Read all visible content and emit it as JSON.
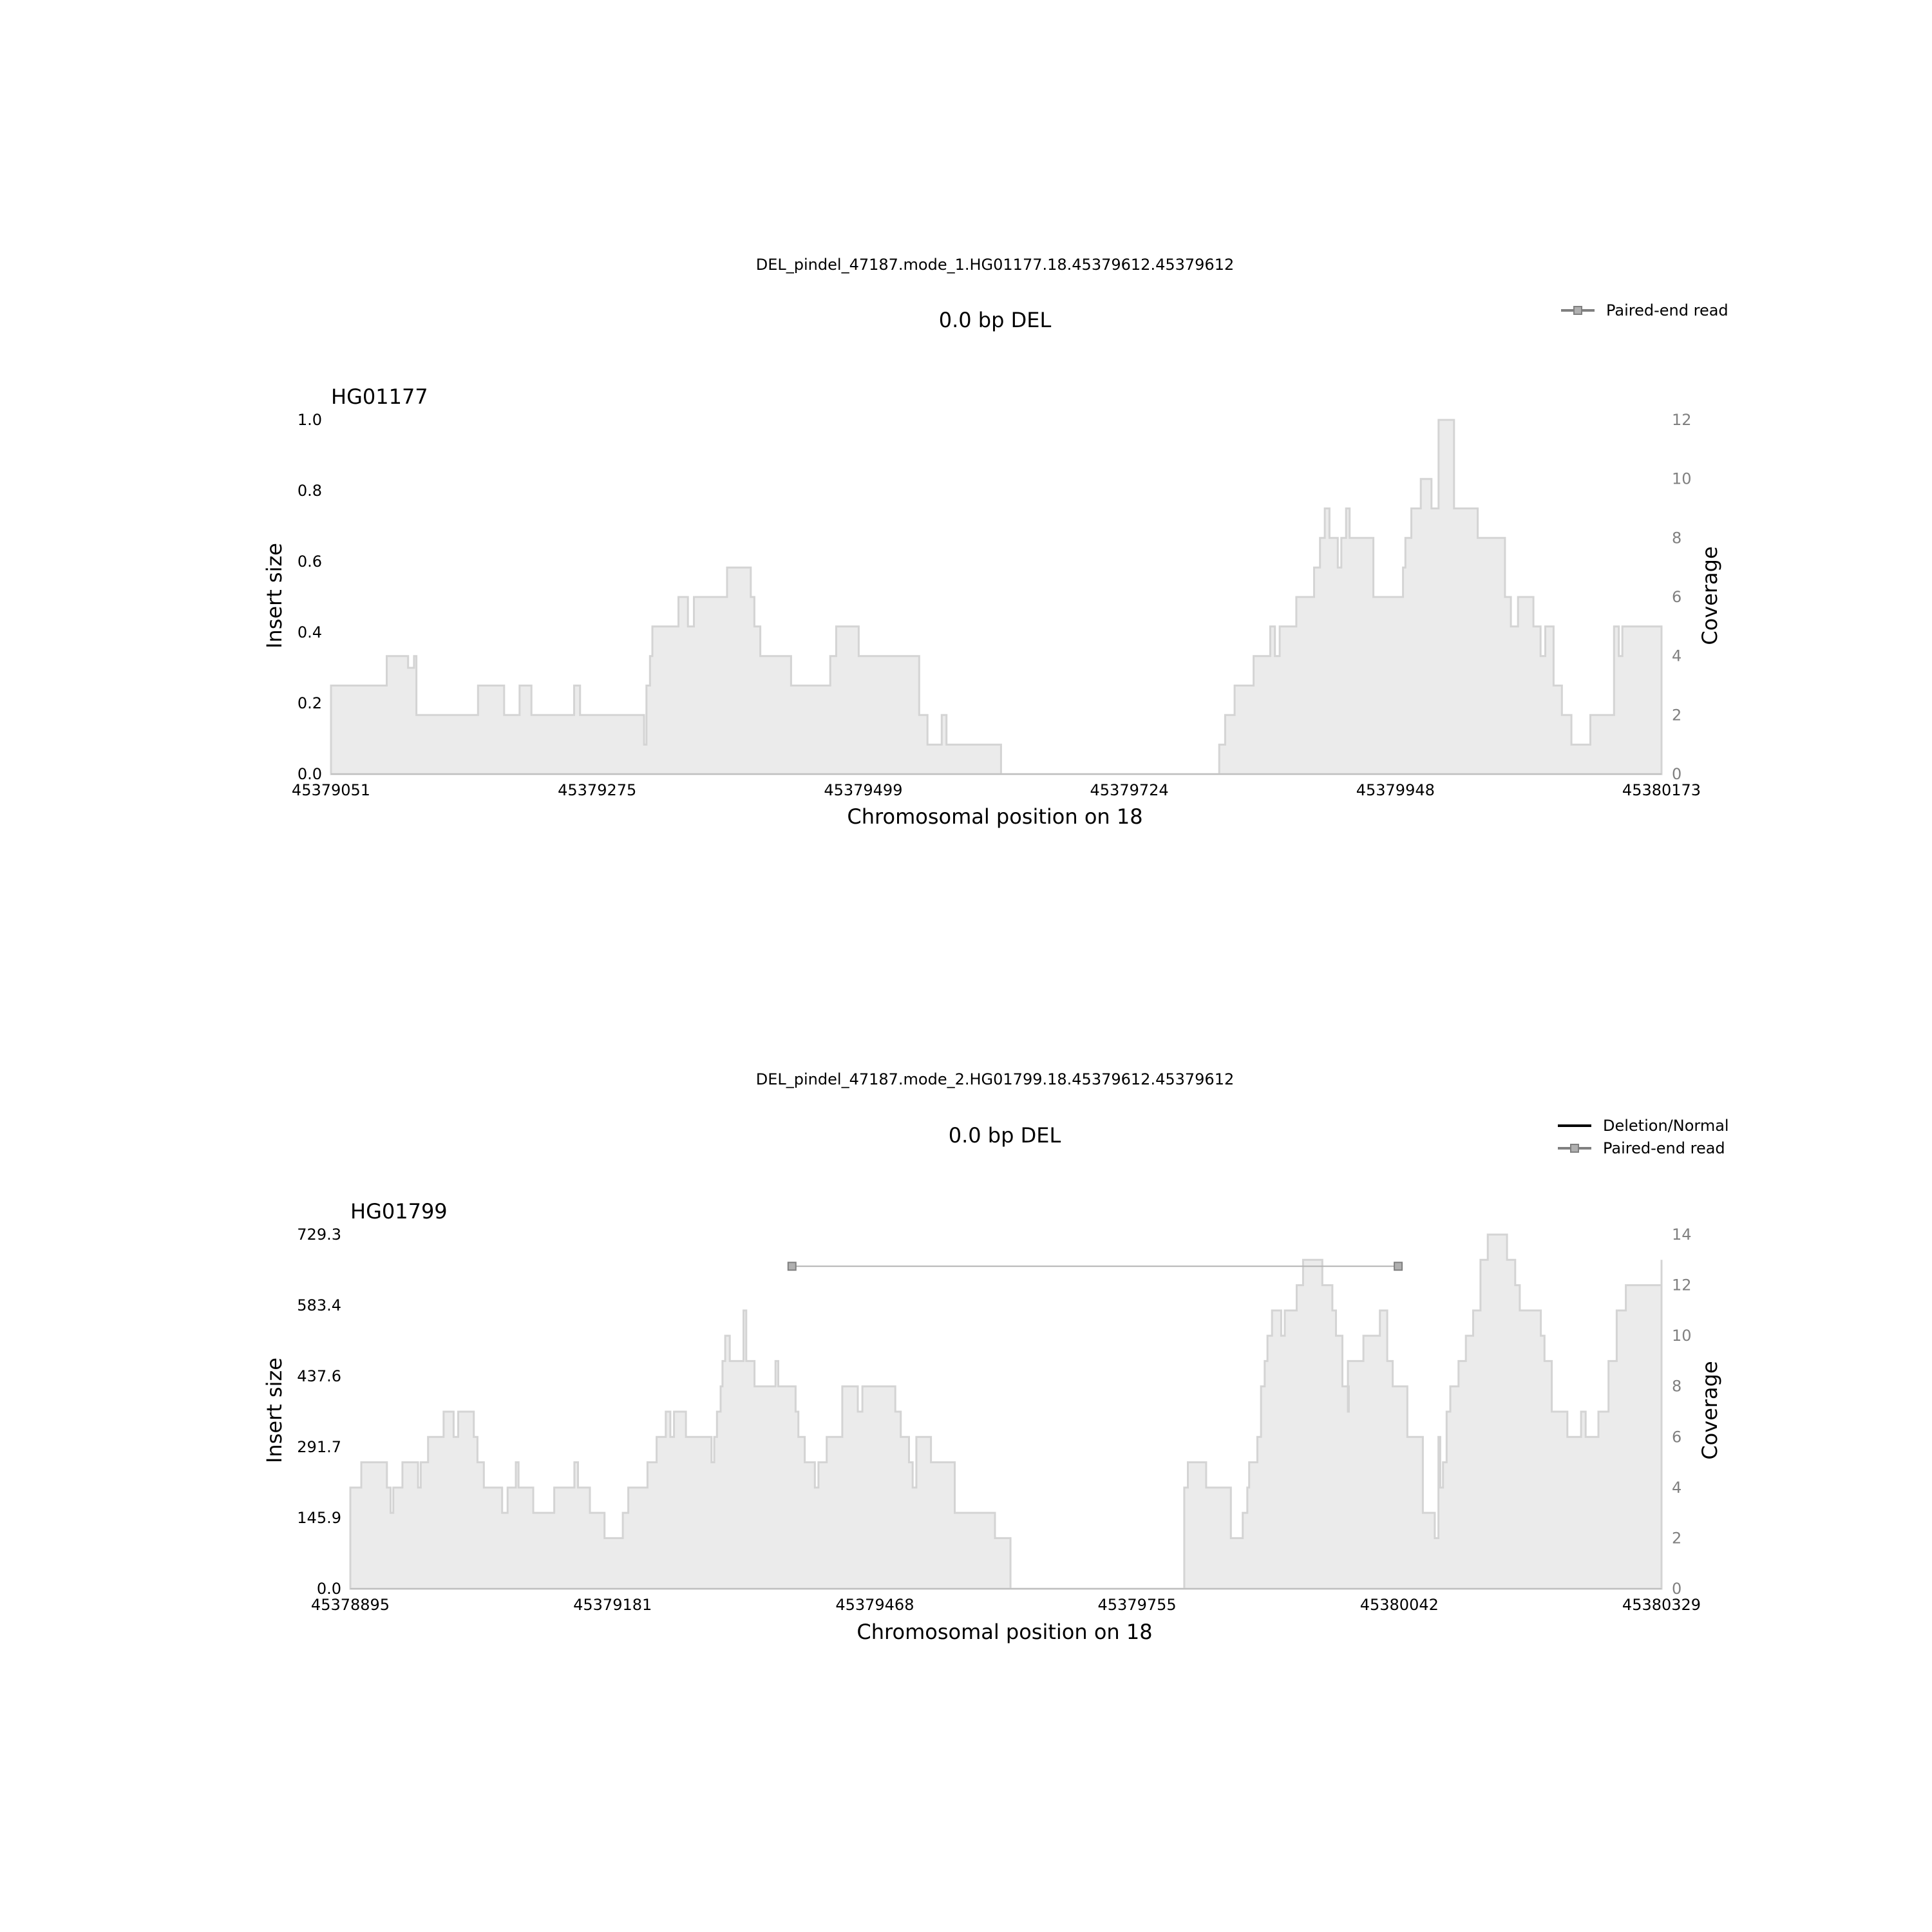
{
  "chart_data": [
    {
      "type": "area",
      "figure_title": "DEL_pindel_47187.mode_1.HG01177.18.45379612.45379612",
      "title": "0.0 bp DEL",
      "sample": "HG01177",
      "xlabel": "Chromosomal position on 18",
      "ylabel": "Insert size",
      "y2label": "Coverage",
      "xlim": [
        45379051,
        45380173
      ],
      "ylim": [
        0.0,
        1.0
      ],
      "y2lim": [
        0,
        12
      ],
      "xticks": [
        "45379051",
        "45379275",
        "45379499",
        "45379724",
        "45379948",
        "45380173"
      ],
      "yticks": [
        "0.0",
        "0.2",
        "0.4",
        "0.6",
        "0.8",
        "1.0"
      ],
      "y2ticks": [
        "0",
        "2",
        "4",
        "6",
        "8",
        "10",
        "12"
      ],
      "legend": {
        "placement": "top-right",
        "entries": [
          {
            "label": "Paired-end read",
            "style": "paired"
          }
        ]
      },
      "colors": {
        "coverage_fill": "#ebebeb",
        "coverage_edge": "#d4d4d4",
        "paired_read": "#808080",
        "axis": "#bfbfbf"
      },
      "paired_reads": [],
      "coverage": [
        [
          45379051,
          3
        ],
        [
          45379098,
          4
        ],
        [
          45379116,
          3.6
        ],
        [
          45379121,
          4
        ],
        [
          45379123,
          2
        ],
        [
          45379175,
          3
        ],
        [
          45379197,
          2
        ],
        [
          45379210,
          3
        ],
        [
          45379220,
          2
        ],
        [
          45379256,
          3
        ],
        [
          45379261,
          2
        ],
        [
          45379315,
          1
        ],
        [
          45379317,
          3
        ],
        [
          45379320,
          4
        ],
        [
          45379322,
          5
        ],
        [
          45379344,
          6
        ],
        [
          45379352,
          5
        ],
        [
          45379357,
          6
        ],
        [
          45379385,
          7
        ],
        [
          45379405,
          6
        ],
        [
          45379408,
          5
        ],
        [
          45379413,
          4
        ],
        [
          45379439,
          3
        ],
        [
          45379472,
          4
        ],
        [
          45379477,
          5
        ],
        [
          45379496,
          4
        ],
        [
          45379547,
          2
        ],
        [
          45379554,
          1
        ],
        [
          45379566,
          2
        ],
        [
          45379570,
          1
        ],
        [
          45379616,
          0
        ],
        [
          45379800,
          1
        ],
        [
          45379805,
          2
        ],
        [
          45379813,
          3
        ],
        [
          45379829,
          4
        ],
        [
          45379843,
          5
        ],
        [
          45379847,
          4
        ],
        [
          45379851,
          5
        ],
        [
          45379865,
          6
        ],
        [
          45379880,
          7
        ],
        [
          45379885,
          8
        ],
        [
          45379889,
          9
        ],
        [
          45379893,
          8
        ],
        [
          45379900,
          7
        ],
        [
          45379903,
          8
        ],
        [
          45379907,
          9
        ],
        [
          45379910,
          8
        ],
        [
          45379930,
          6
        ],
        [
          45379955,
          7
        ],
        [
          45379957,
          8
        ],
        [
          45379962,
          9
        ],
        [
          45379970,
          10
        ],
        [
          45379979,
          9
        ],
        [
          45379985,
          12
        ],
        [
          45379998,
          9
        ],
        [
          45380018,
          8
        ],
        [
          45380041,
          6
        ],
        [
          45380046,
          5
        ],
        [
          45380052,
          6
        ],
        [
          45380065,
          5
        ],
        [
          45380071,
          4
        ],
        [
          45380075,
          5
        ],
        [
          45380082,
          3
        ],
        [
          45380089,
          2
        ],
        [
          45380097,
          1
        ],
        [
          45380113,
          2
        ],
        [
          45380133,
          5
        ],
        [
          45380137,
          4
        ],
        [
          45380140,
          5
        ],
        [
          45380173,
          5
        ]
      ]
    },
    {
      "type": "area",
      "figure_title": "DEL_pindel_47187.mode_2.HG01799.18.45379612.45379612",
      "title": "0.0 bp DEL",
      "sample": "HG01799",
      "xlabel": "Chromosomal position on 18",
      "ylabel": "Insert size",
      "y2label": "Coverage",
      "xlim": [
        45378895,
        45380329
      ],
      "ylim": [
        0.0,
        729.3
      ],
      "y2lim": [
        0,
        14
      ],
      "xticks": [
        "45378895",
        "45379181",
        "45379468",
        "45379755",
        "45380042",
        "45380329"
      ],
      "yticks": [
        "0.0",
        "145.9",
        "291.7",
        "437.6",
        "583.4",
        "729.3"
      ],
      "y2ticks": [
        "0",
        "2",
        "4",
        "6",
        "8",
        "10",
        "12",
        "14"
      ],
      "legend": {
        "placement": "top-right",
        "entries": [
          {
            "label": "Deletion/Normal",
            "style": "line"
          },
          {
            "label": "Paired-end read",
            "style": "paired"
          }
        ]
      },
      "colors": {
        "coverage_fill": "#ebebeb",
        "coverage_edge": "#d4d4d4",
        "paired_read": "#808080",
        "deletion_line": "#000000",
        "axis": "#bfbfbf"
      },
      "paired_reads": [
        {
          "x1": 45379378,
          "x2": 45380041,
          "y": 664
        }
      ],
      "coverage": [
        [
          45378895,
          4
        ],
        [
          45378907,
          5
        ],
        [
          45378935,
          4
        ],
        [
          45378939,
          3
        ],
        [
          45378942,
          4
        ],
        [
          45378952,
          5
        ],
        [
          45378969,
          4
        ],
        [
          45378972,
          5
        ],
        [
          45378980,
          6
        ],
        [
          45378997,
          7
        ],
        [
          45379008,
          6
        ],
        [
          45379013,
          7
        ],
        [
          45379030,
          6
        ],
        [
          45379034,
          5
        ],
        [
          45379041,
          4
        ],
        [
          45379061,
          3
        ],
        [
          45379067,
          4
        ],
        [
          45379076,
          5
        ],
        [
          45379079,
          4
        ],
        [
          45379095,
          3
        ],
        [
          45379118,
          4
        ],
        [
          45379140,
          5
        ],
        [
          45379144,
          4
        ],
        [
          45379157,
          3
        ],
        [
          45379173,
          2
        ],
        [
          45379193,
          3
        ],
        [
          45379199,
          4
        ],
        [
          45379220,
          5
        ],
        [
          45379230,
          6
        ],
        [
          45379240,
          7
        ],
        [
          45379245,
          6
        ],
        [
          45379249,
          7
        ],
        [
          45379262,
          6
        ],
        [
          45379290,
          5
        ],
        [
          45379293,
          6
        ],
        [
          45379296,
          7
        ],
        [
          45379300,
          8
        ],
        [
          45379302,
          9
        ],
        [
          45379305,
          10
        ],
        [
          45379310,
          9
        ],
        [
          45379325,
          11
        ],
        [
          45379328,
          9
        ],
        [
          45379337,
          8
        ],
        [
          45379360,
          9
        ],
        [
          45379363,
          8
        ],
        [
          45379382,
          7
        ],
        [
          45379385,
          6
        ],
        [
          45379392,
          5
        ],
        [
          45379403,
          4
        ],
        [
          45379407,
          5
        ],
        [
          45379416,
          6
        ],
        [
          45379433,
          8
        ],
        [
          45379450,
          7
        ],
        [
          45379455,
          8
        ],
        [
          45379491,
          7
        ],
        [
          45379497,
          6
        ],
        [
          45379506,
          5
        ],
        [
          45379510,
          4
        ],
        [
          45379514,
          6
        ],
        [
          45379530,
          5
        ],
        [
          45379556,
          3
        ],
        [
          45379600,
          2
        ],
        [
          45379617,
          0
        ],
        [
          45379807,
          4
        ],
        [
          45379811,
          5
        ],
        [
          45379831,
          4
        ],
        [
          45379858,
          2
        ],
        [
          45379871,
          3
        ],
        [
          45379876,
          4
        ],
        [
          45379878,
          5
        ],
        [
          45379887,
          6
        ],
        [
          45379891,
          8
        ],
        [
          45379895,
          9
        ],
        [
          45379898,
          10
        ],
        [
          45379903,
          11
        ],
        [
          45379913,
          10
        ],
        [
          45379917,
          11
        ],
        [
          45379930,
          12
        ],
        [
          45379937,
          13
        ],
        [
          45379958,
          12
        ],
        [
          45379969,
          11
        ],
        [
          45379973,
          10
        ],
        [
          45379980,
          8
        ],
        [
          45379987,
          7
        ],
        [
          45379986,
          9
        ],
        [
          45380003,
          10
        ],
        [
          45380021,
          11
        ],
        [
          45380029,
          9
        ],
        [
          45380035,
          8
        ],
        [
          45380051,
          6
        ],
        [
          45380068,
          3
        ],
        [
          45380081,
          2
        ],
        [
          45380085,
          6
        ],
        [
          45380087,
          4
        ],
        [
          45380090,
          5
        ],
        [
          45380094,
          7
        ],
        [
          45380098,
          8
        ],
        [
          45380107,
          9
        ],
        [
          45380115,
          10
        ],
        [
          45380123,
          11
        ],
        [
          45380131,
          13
        ],
        [
          45380139,
          14
        ],
        [
          45380160,
          13
        ],
        [
          45380169,
          12
        ],
        [
          45380174,
          11
        ],
        [
          45380197,
          10
        ],
        [
          45380201,
          9
        ],
        [
          45380209,
          7
        ],
        [
          45380226,
          6
        ],
        [
          45380241,
          7
        ],
        [
          45380246,
          6
        ],
        [
          45380260,
          7
        ],
        [
          45380271,
          9
        ],
        [
          45380280,
          11
        ],
        [
          45380290,
          12
        ],
        [
          45380329,
          13
        ]
      ]
    }
  ]
}
